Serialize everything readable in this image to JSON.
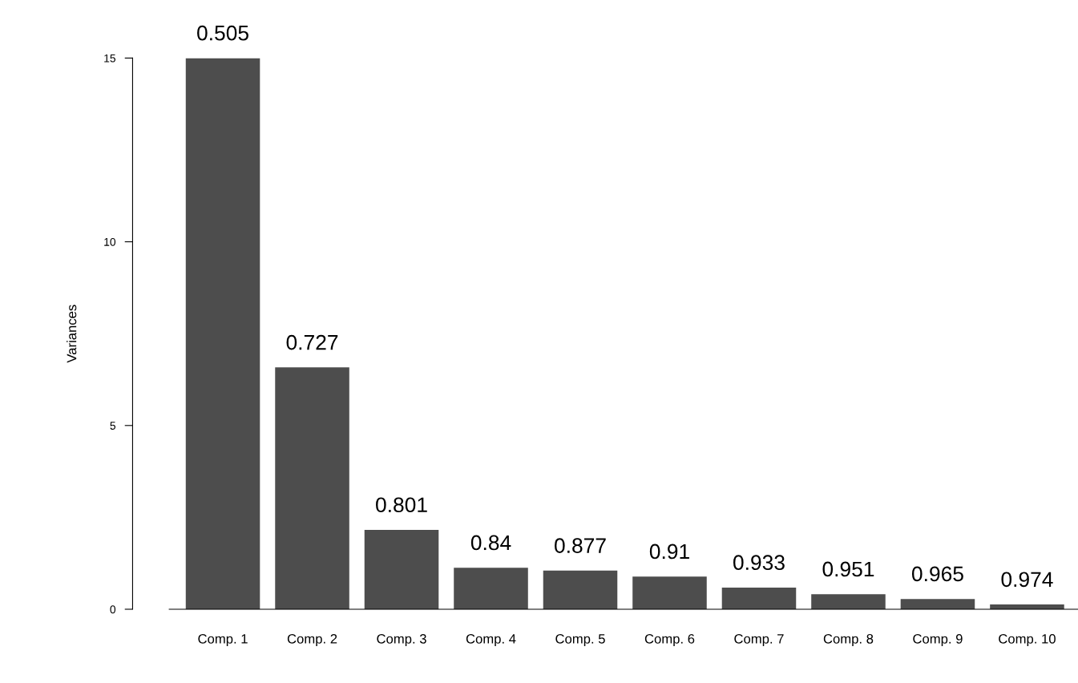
{
  "chart_data": {
    "type": "bar",
    "ylabel": "Variances",
    "categories": [
      "Comp. 1",
      "Comp. 2",
      "Comp. 3",
      "Comp. 4",
      "Comp. 5",
      "Comp. 6",
      "Comp. 7",
      "Comp. 8",
      "Comp. 9",
      "Comp. 10"
    ],
    "values": [
      15.0,
      6.58,
      2.16,
      1.13,
      1.05,
      0.89,
      0.59,
      0.41,
      0.28,
      0.13
    ],
    "annotations": [
      {
        "text": "0.505",
        "x": "Comp. 1",
        "y": 15.0
      },
      {
        "text": "0.727",
        "x": "Comp. 2",
        "y": 6.58
      },
      {
        "text": "0.801",
        "x": "Comp. 3",
        "y": 2.16
      },
      {
        "text": "0.84",
        "x": "Comp. 4",
        "y": 1.13
      },
      {
        "text": "0.877",
        "x": "Comp. 5",
        "y": 1.05
      },
      {
        "text": "0.91",
        "x": "Comp. 6",
        "y": 0.89
      },
      {
        "text": "0.933",
        "x": "Comp. 7",
        "y": 0.59
      },
      {
        "text": "0.951",
        "x": "Comp. 8",
        "y": 0.41
      },
      {
        "text": "0.965",
        "x": "Comp. 9",
        "y": 0.28
      },
      {
        "text": "0.974",
        "x": "Comp. 10",
        "y": 0.13
      }
    ],
    "color": "#4d4d4d",
    "ylim": [
      0,
      15
    ],
    "yticks": [
      0,
      5,
      10,
      15
    ],
    "grid": false,
    "legend": false
  }
}
